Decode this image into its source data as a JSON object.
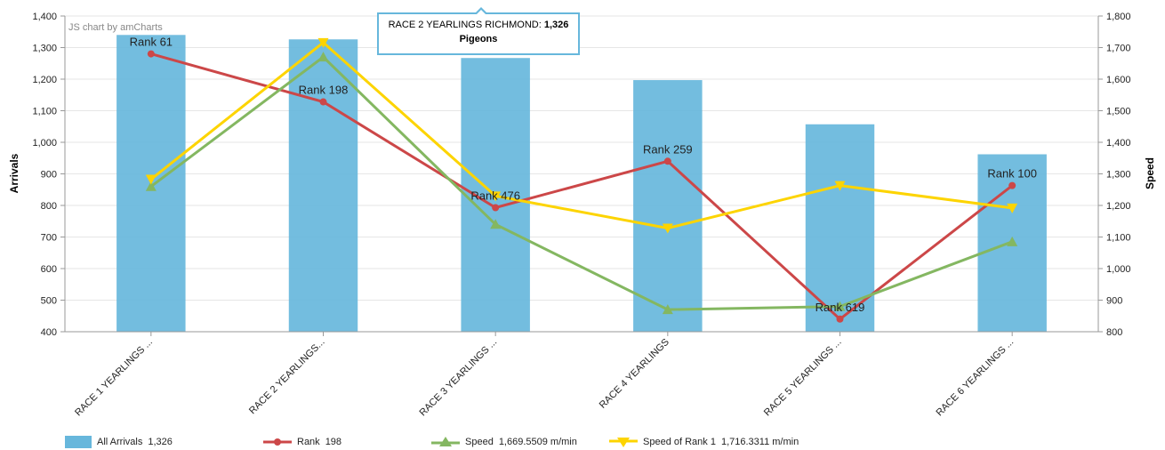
{
  "credit": "JS chart by amCharts",
  "chart_data": {
    "type": "bar",
    "categories": [
      "RACE 1 YEARLINGS ...",
      "RACE 2 YEARLINGS...",
      "RACE 3 YEARLINGS ...",
      "RACE 4 YEARLINGS",
      "RACE 5 YEARLINGS ...",
      "RACE 6 YEARLINGS ..."
    ],
    "series": [
      {
        "name": "All Arrivals",
        "kind": "bar",
        "axis": "left",
        "color": "#67b7dc",
        "values": [
          1340,
          1326,
          1267,
          1197,
          1057,
          962
        ]
      },
      {
        "name": "Rank",
        "kind": "line",
        "axis": "left",
        "color": "#cc4748",
        "marker": "circle",
        "values": [
          1280,
          1128,
          793,
          940,
          440,
          863
        ],
        "labels": [
          "Rank 61",
          "Rank 198",
          "Rank 476",
          "Rank 259",
          "Rank 619",
          "Rank 100"
        ]
      },
      {
        "name": "Speed",
        "kind": "line",
        "axis": "right",
        "color": "#84b761",
        "marker": "triangle-up",
        "values": [
          1260,
          1670,
          1140,
          870,
          880,
          1085
        ]
      },
      {
        "name": "Speed of Rank 1",
        "kind": "line",
        "axis": "right",
        "color": "#fdd400",
        "marker": "triangle-down",
        "values": [
          1283,
          1716,
          1230,
          1128,
          1263,
          1192
        ]
      }
    ],
    "ylabel": "Arrivals",
    "y2label": "Speed",
    "ylim": [
      400,
      1400
    ],
    "y_ticks": [
      "400",
      "500",
      "600",
      "700",
      "800",
      "900",
      "1,000",
      "1,100",
      "1,200",
      "1,300",
      "1,400"
    ],
    "y2lim": [
      800,
      1800
    ],
    "y2_ticks": [
      "800",
      "900",
      "1,000",
      "1,100",
      "1,200",
      "1,300",
      "1,400",
      "1,500",
      "1,600",
      "1,700",
      "1,800"
    ],
    "grid": true,
    "legend_placement": "bottom-left"
  },
  "tooltip": {
    "category": "RACE 2 YEARLINGS RICHMOND:",
    "value": "1,326",
    "series": "Pigeons"
  },
  "legend": [
    {
      "label": "All Arrivals",
      "value": "1,326"
    },
    {
      "label": "Rank",
      "value": "198"
    },
    {
      "label": "Speed",
      "value": "1,669.5509 m/min"
    },
    {
      "label": "Speed of Rank 1",
      "value": "1,716.3311 m/min"
    }
  ]
}
